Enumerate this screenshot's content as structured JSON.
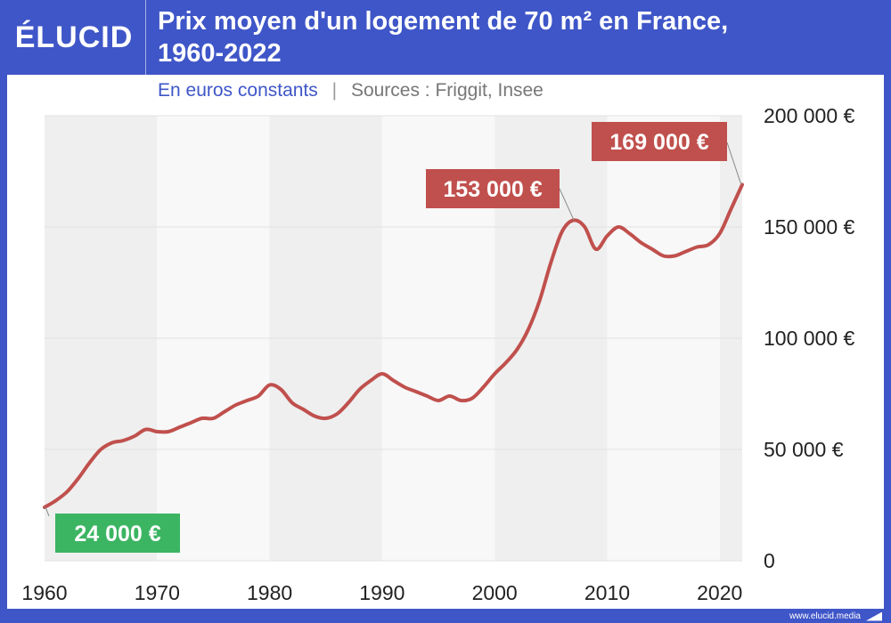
{
  "header": {
    "logo_text": "ÉLUCID",
    "title_line1": "Prix moyen d'un logement de 70 m² en France,",
    "title_line2": "1960-2022"
  },
  "subtitle": {
    "unit": "En euros constants",
    "separator": "|",
    "source": "Sources : Friggit, Insee"
  },
  "footer": {
    "url": "www.elucid.media"
  },
  "colors": {
    "brand": "#3f56c8",
    "line": "#c0504d",
    "label_green": "#3cb563",
    "label_red": "#c0504d"
  },
  "chart_data": {
    "type": "line",
    "title": "Prix moyen d'un logement de 70 m² en France, 1960-2022",
    "subtitle": "En euros constants",
    "source": "Sources : Friggit, Insee",
    "xlim": [
      1960,
      2022
    ],
    "ylim": [
      0,
      200000
    ],
    "x_ticks": [
      1960,
      1970,
      1980,
      1990,
      2000,
      2010,
      2020
    ],
    "y_ticks": [
      0,
      50000,
      100000,
      150000,
      200000
    ],
    "y_tick_labels": [
      "0",
      "50 000 €",
      "100 000 €",
      "150 000 €",
      "200 000 €"
    ],
    "y_axis_side": "right",
    "grid": true,
    "x": [
      1960,
      1961,
      1962,
      1963,
      1964,
      1965,
      1966,
      1967,
      1968,
      1969,
      1970,
      1971,
      1972,
      1973,
      1974,
      1975,
      1976,
      1977,
      1978,
      1979,
      1980,
      1981,
      1982,
      1983,
      1984,
      1985,
      1986,
      1987,
      1988,
      1989,
      1990,
      1991,
      1992,
      1993,
      1994,
      1995,
      1996,
      1997,
      1998,
      1999,
      2000,
      2001,
      2002,
      2003,
      2004,
      2005,
      2006,
      2007,
      2008,
      2009,
      2010,
      2011,
      2012,
      2013,
      2014,
      2015,
      2016,
      2017,
      2018,
      2019,
      2020,
      2021,
      2022
    ],
    "series": [
      {
        "values": [
          24000,
          27000,
          31000,
          37000,
          44000,
          50000,
          53000,
          54000,
          56000,
          59000,
          58000,
          58000,
          60000,
          62000,
          64000,
          64000,
          67000,
          70000,
          72000,
          74000,
          79000,
          77000,
          71000,
          68000,
          65000,
          64000,
          66000,
          71000,
          77000,
          81000,
          84000,
          81000,
          78000,
          76000,
          74000,
          72000,
          74000,
          72000,
          73000,
          78000,
          84000,
          89000,
          95000,
          104000,
          117000,
          134000,
          148000,
          153000,
          150000,
          140000,
          146000,
          150000,
          147000,
          143000,
          140000,
          137000,
          137000,
          139000,
          141000,
          142000,
          147000,
          158000,
          169000
        ]
      }
    ],
    "annotations": [
      {
        "text": "24 000 €",
        "x": 1960,
        "y": 24000,
        "color": "green"
      },
      {
        "text": "153 000 €",
        "x": 2007,
        "y": 153000,
        "color": "red"
      },
      {
        "text": "169 000 €",
        "x": 2022,
        "y": 169000,
        "color": "red"
      }
    ]
  }
}
